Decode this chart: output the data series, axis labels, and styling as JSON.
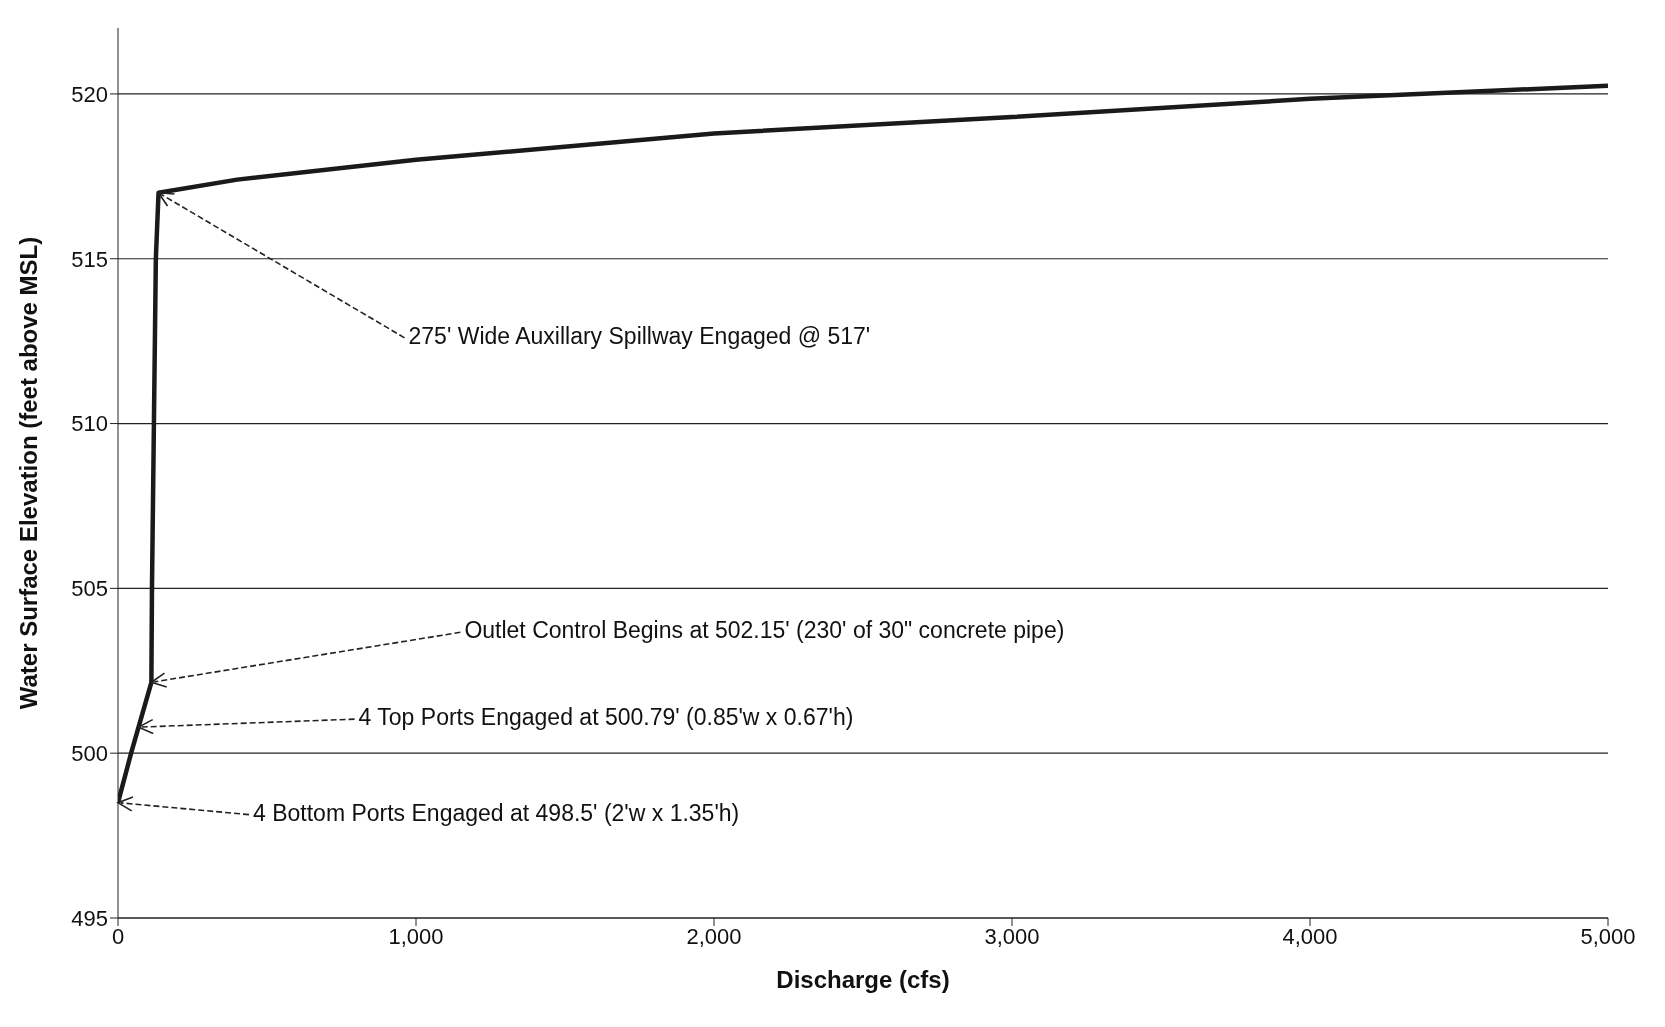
{
  "chart_data": {
    "type": "line",
    "xlabel": "Discharge (cfs)",
    "ylabel": "Water Surface Elevation (feet above MSL)",
    "x": [
      0,
      44,
      112,
      114,
      127,
      136,
      400,
      1000,
      2000,
      3000,
      4000,
      5000
    ],
    "series": [
      {
        "color": "#1a1a1a",
        "values": [
          498.5,
          500,
          502.15,
          505,
          515,
          517,
          517.4,
          518,
          518.8,
          519.3,
          519.85,
          520.25
        ]
      }
    ],
    "xlim": [
      0,
      5000
    ],
    "xticks": [
      {
        "value": 0,
        "label": "0"
      },
      {
        "value": 1000,
        "label": "1,000"
      },
      {
        "value": 2000,
        "label": "2,000"
      },
      {
        "value": 3000,
        "label": "3,000"
      },
      {
        "value": 4000,
        "label": "4,000"
      },
      {
        "value": 5000,
        "label": "5,000"
      }
    ],
    "ylim": [
      495,
      522
    ],
    "yticks": [
      495,
      500,
      505,
      510,
      515,
      520
    ],
    "grid": "y",
    "annotations": [
      {
        "text": "275' Wide Auxillary Spillway Engaged @ 517'",
        "x": 136,
        "y": 517
      },
      {
        "text": "Outlet Control Begins at 502.15' (230' of 30\" concrete pipe)",
        "x": 112,
        "y": 502.15
      },
      {
        "text": "4 Top Ports Engaged at 500.79' (0.85'w x 0.67'h)",
        "x": 69,
        "y": 500.79
      },
      {
        "text": "4 Bottom Ports Engaged at 498.5' (2'w x 1.35'h)",
        "x": 0,
        "y": 498.5
      }
    ]
  }
}
